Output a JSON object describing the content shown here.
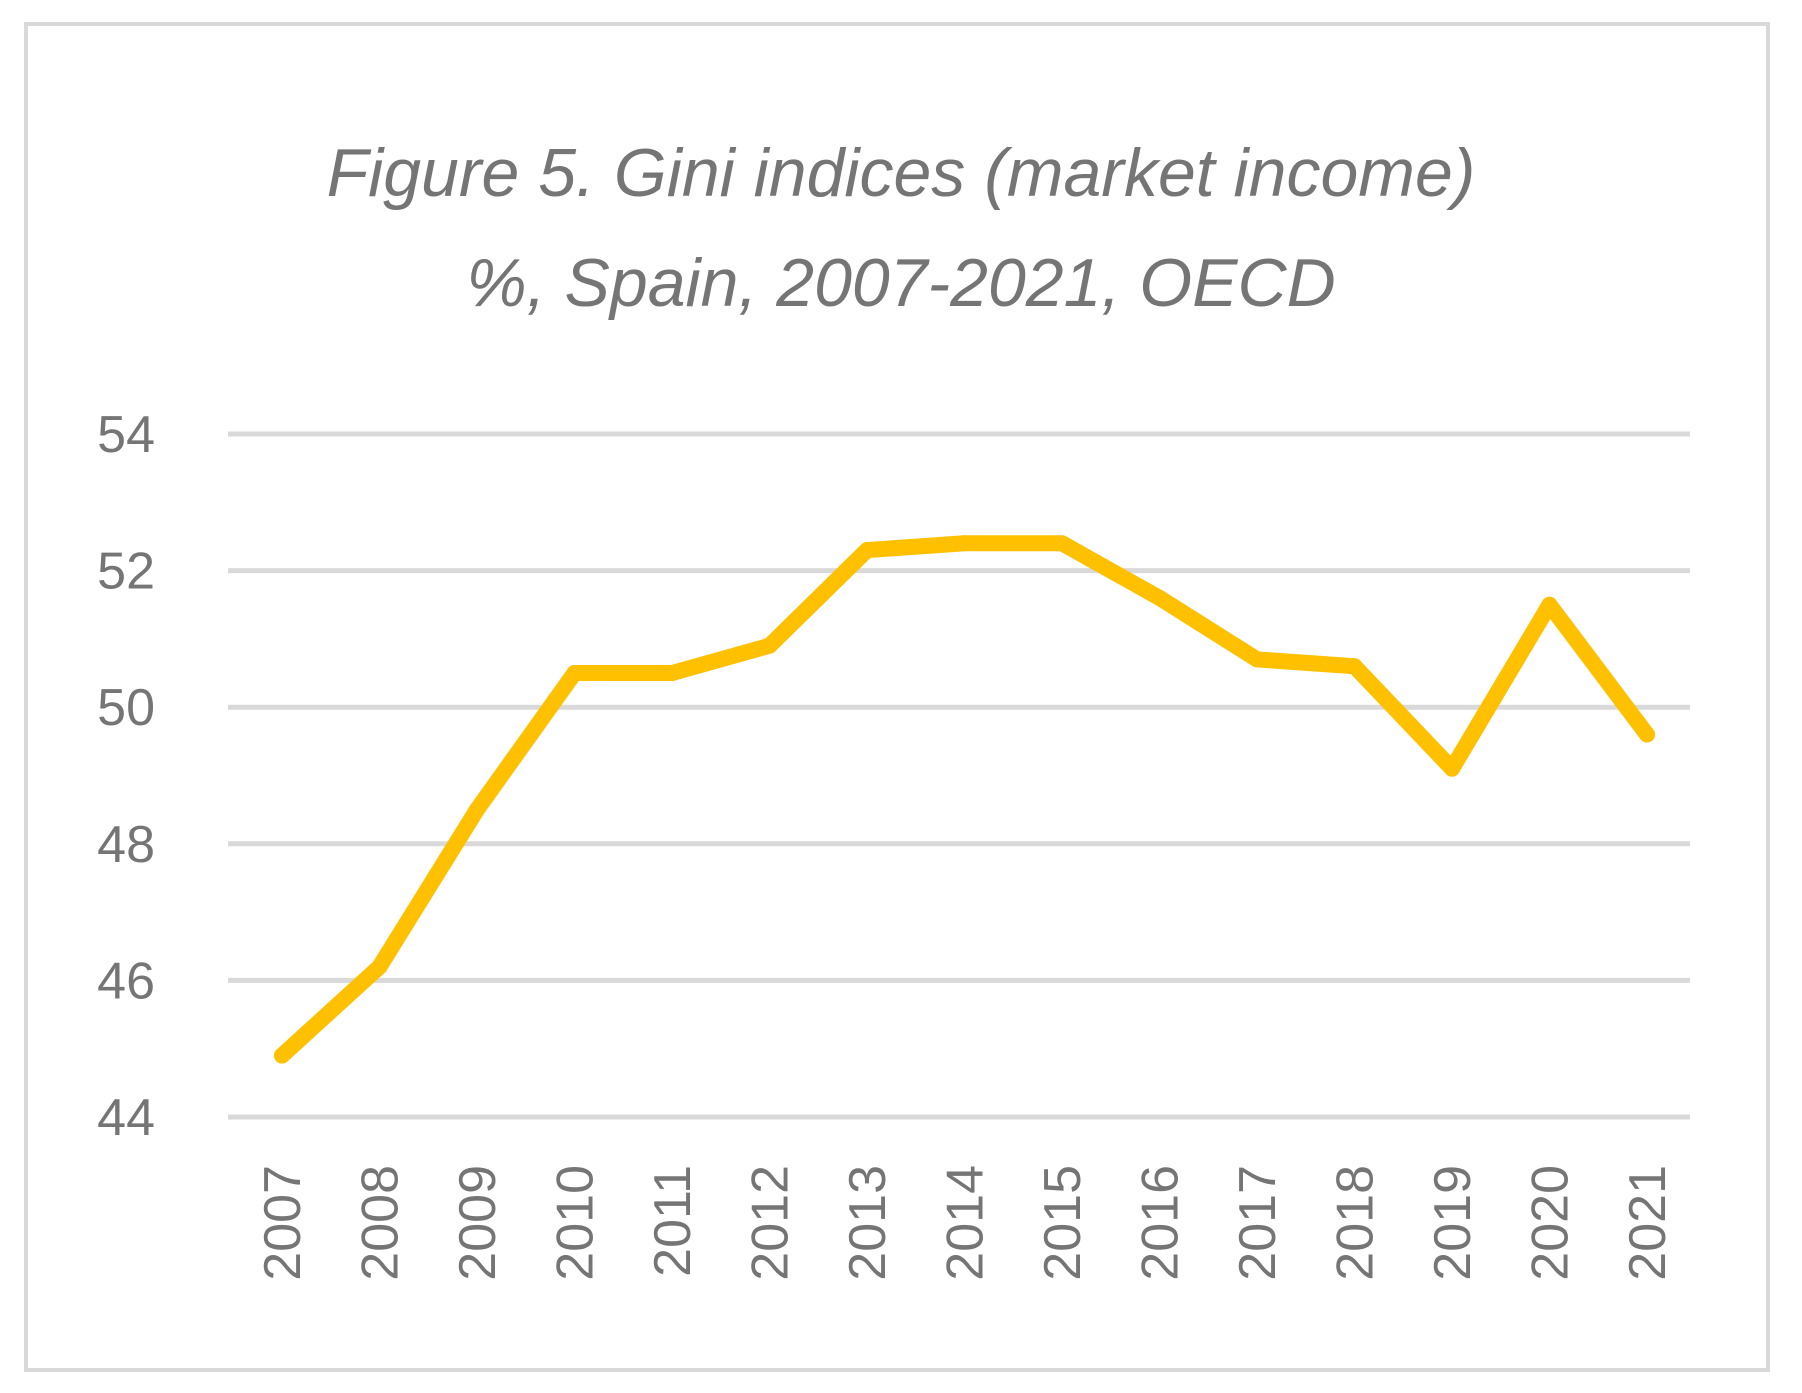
{
  "chart_data": {
    "type": "line",
    "title": "Figure 5. Gini indices (market income)",
    "subtitle": "%, Spain, 2007-2021, OECD",
    "xlabel": "",
    "ylabel": "",
    "categories": [
      "2007",
      "2008",
      "2009",
      "2010",
      "2011",
      "2012",
      "2013",
      "2014",
      "2015",
      "2016",
      "2017",
      "2018",
      "2019",
      "2020",
      "2021"
    ],
    "series": [
      {
        "values": [
          44.9,
          46.2,
          48.5,
          50.5,
          50.5,
          50.9,
          52.3,
          52.4,
          52.4,
          51.6,
          50.7,
          50.6,
          49.1,
          51.5,
          49.6
        ]
      }
    ],
    "ylim": [
      44,
      54
    ],
    "yticks": [
      44,
      46,
      48,
      50,
      52,
      54
    ],
    "grid": true,
    "legend": "none",
    "line_color": "#FFC000",
    "grid_color": "#d9d9d9",
    "text_color": "#757575"
  }
}
